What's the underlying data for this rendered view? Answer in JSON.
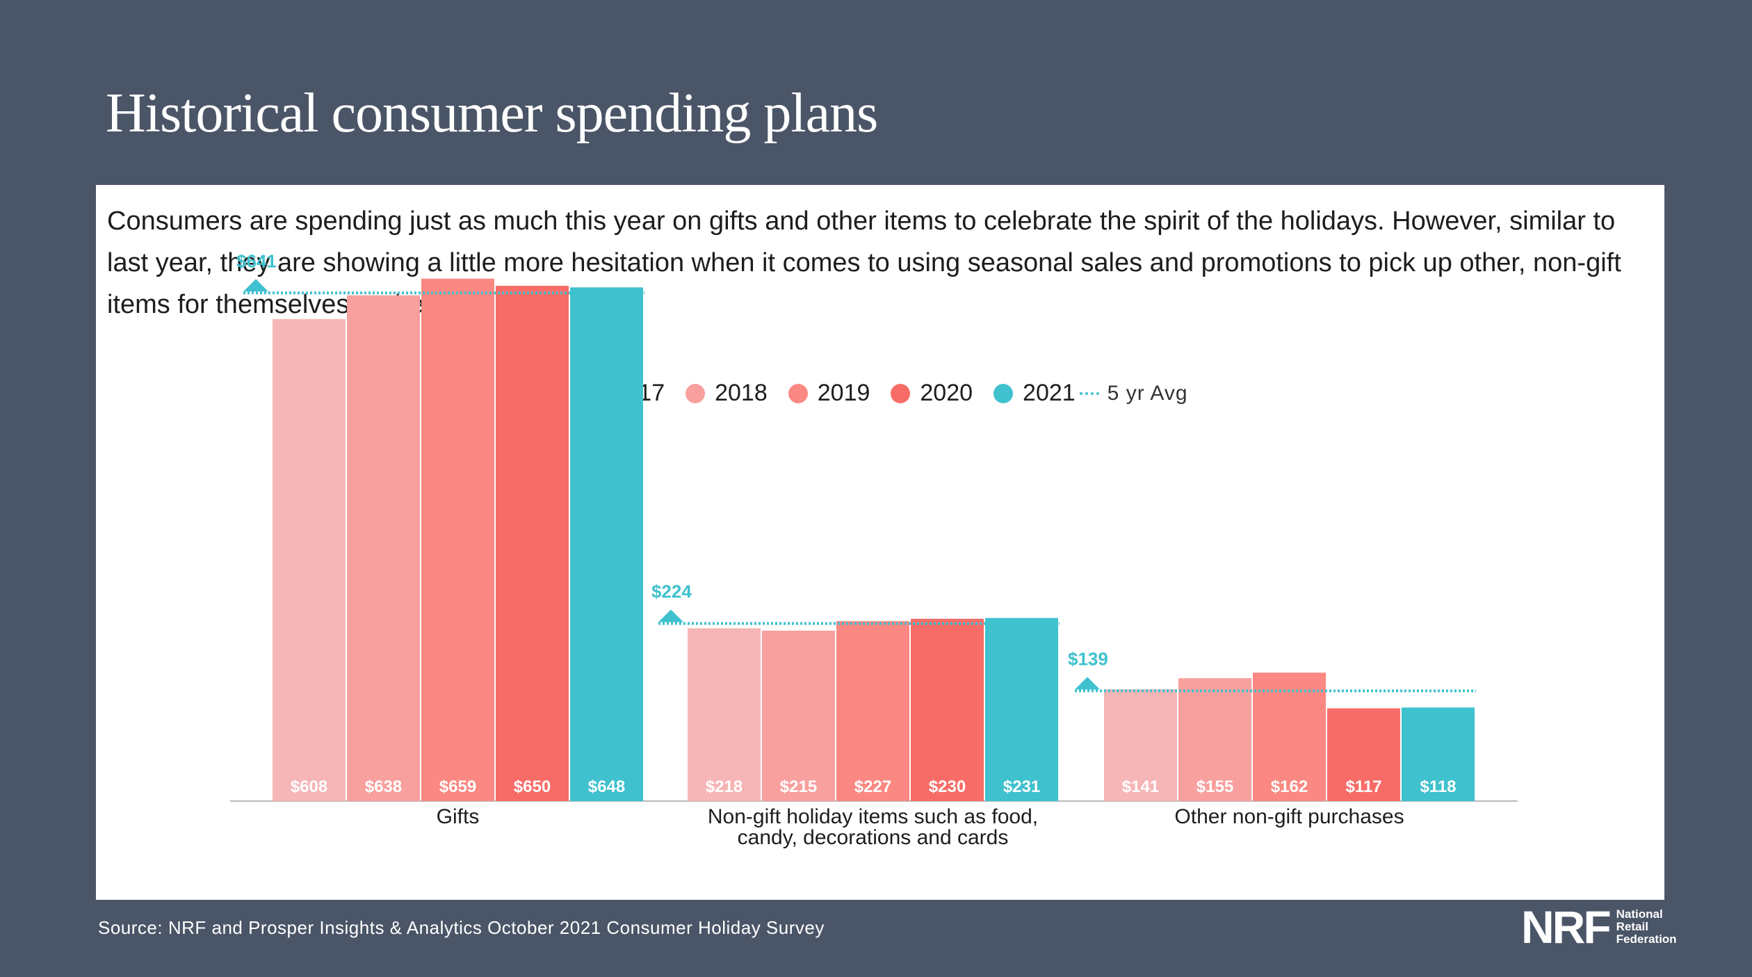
{
  "header": {
    "title": "Historical consumer spending plans"
  },
  "intro_text": "Consumers are spending just as much this year on gifts and other items to celebrate the spirit of the holidays. However, similar to last year, they are showing a little more hesitation when it comes to using seasonal sales and promotions to pick up other, non-gift items for themselves or their families.",
  "footer": {
    "source": "Source: NRF and Prosper Insights & Analytics October 2021 Consumer Holiday Survey",
    "logo_mark": "NRF",
    "logo_line1": "National",
    "logo_line2": "Retail",
    "logo_line3": "Federation"
  },
  "chart_data": {
    "type": "bar",
    "title": "",
    "xlabel": "",
    "ylabel": "",
    "ylim": [
      0,
      700
    ],
    "legend_position": "top-center",
    "categories": [
      [
        "Gifts"
      ],
      [
        "Non-gift holiday items such as food,",
        "candy, decorations and cards"
      ],
      [
        "Other non-gift purchases"
      ]
    ],
    "series": [
      {
        "name": "2017",
        "color": "#f6b5b6",
        "values": [
          608,
          218,
          141
        ],
        "labels": [
          "$608",
          "$218",
          "$141"
        ]
      },
      {
        "name": "2018",
        "color": "#f8a09e",
        "values": [
          638,
          215,
          155
        ],
        "labels": [
          "$638",
          "$215",
          "$155"
        ]
      },
      {
        "name": "2019",
        "color": "#fb8882",
        "values": [
          659,
          227,
          162
        ],
        "labels": [
          "$659",
          "$227",
          "$162"
        ]
      },
      {
        "name": "2020",
        "color": "#f86c67",
        "values": [
          650,
          230,
          117
        ],
        "labels": [
          "$650",
          "$230",
          "$117"
        ]
      },
      {
        "name": "2021",
        "color": "#3fc1ce",
        "values": [
          648,
          231,
          118
        ],
        "labels": [
          "$648",
          "$231",
          "$118"
        ]
      }
    ],
    "average": {
      "name": "5 yr Avg",
      "color": "#3fc1ce",
      "values": [
        641,
        224,
        139
      ],
      "labels": [
        "$641",
        "$224",
        "$139"
      ]
    }
  }
}
